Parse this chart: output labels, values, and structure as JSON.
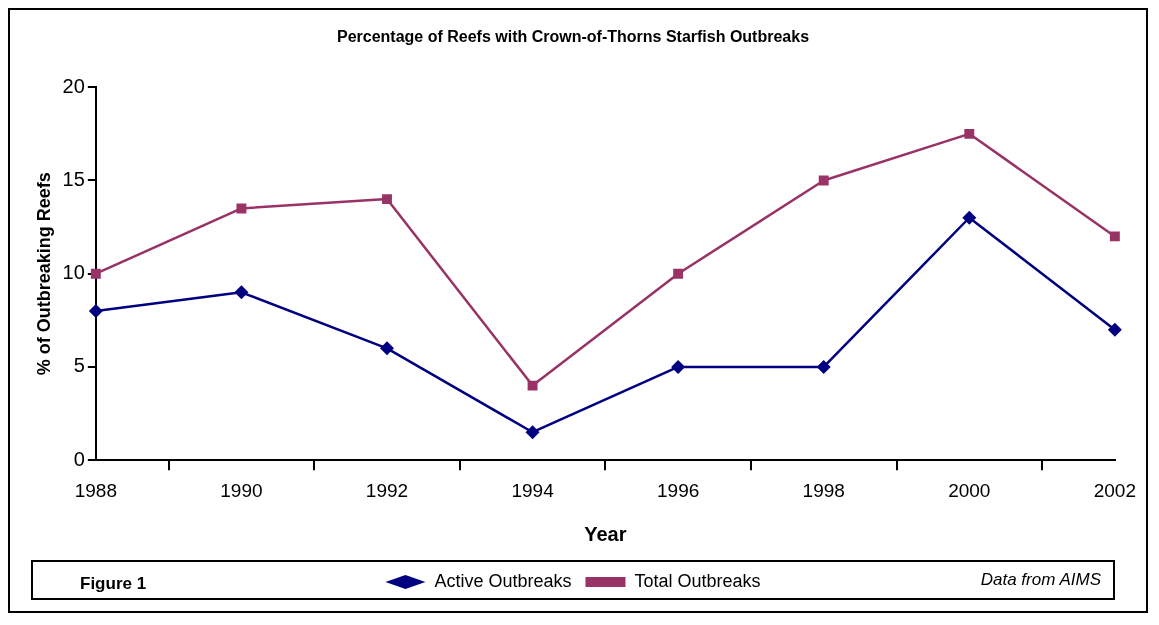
{
  "chart_data": {
    "type": "line",
    "title": "Percentage of Reefs with Crown-of-Thorns Starfish Outbreaks",
    "xlabel": "Year",
    "ylabel": "% of Outbreaking Reefs",
    "categories": [
      "1988",
      "1990",
      "1992",
      "1994",
      "1996",
      "1998",
      "2000",
      "2002"
    ],
    "series": [
      {
        "name": "Active Outbreaks",
        "color": "#000080",
        "marker": "diamond",
        "values": [
          8,
          9,
          6,
          1.5,
          5,
          5,
          13,
          7
        ]
      },
      {
        "name": "Total Outbreaks",
        "color": "#993366",
        "marker": "square",
        "values": [
          10,
          13.5,
          14,
          4,
          10,
          15,
          17.5,
          12
        ]
      }
    ],
    "ylim": [
      0,
      20
    ],
    "yticks": [
      0,
      5,
      10,
      15,
      20
    ],
    "grid": false,
    "legend": "bottom",
    "line_style": "solid",
    "annotations": [
      "Figure 1",
      "Data from AIMS"
    ]
  }
}
